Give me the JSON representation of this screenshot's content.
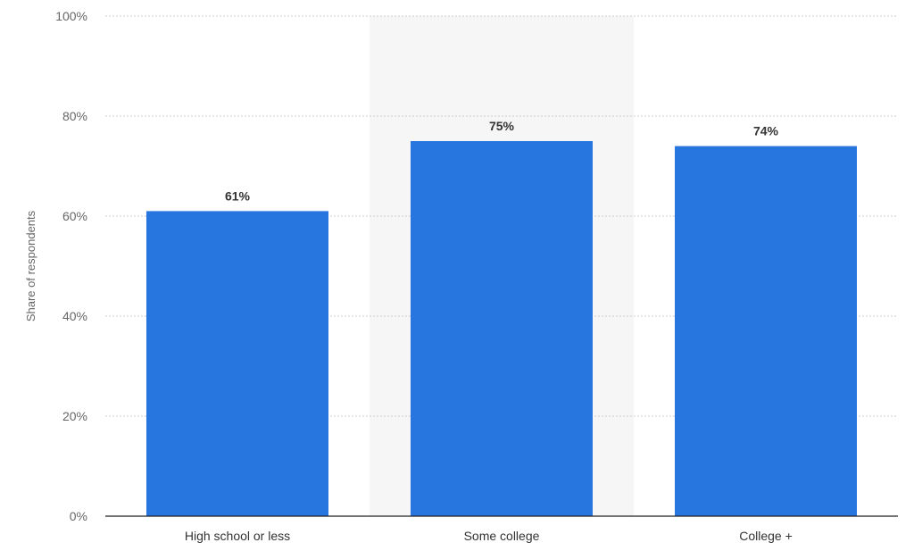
{
  "colors": {
    "bar": "#2775de",
    "highlight_band": "#f6f6f6",
    "grid": "#cccccc",
    "axis": "#222222",
    "text": "#333333",
    "tick_text": "#666666"
  },
  "chart_data": {
    "type": "bar",
    "title": "",
    "xlabel": "",
    "ylabel": "Share of respondents",
    "categories": [
      "High school or less",
      "Some college",
      "College +"
    ],
    "values": [
      61,
      75,
      74
    ],
    "data_labels": [
      "61%",
      "75%",
      "74%"
    ],
    "ylim": [
      0,
      100
    ],
    "yticks": [
      0,
      20,
      40,
      60,
      80,
      100
    ],
    "ytick_labels": [
      "0%",
      "20%",
      "40%",
      "60%",
      "80%",
      "100%"
    ],
    "grid": true,
    "highlighted_category": "Some college",
    "legend": "none"
  }
}
